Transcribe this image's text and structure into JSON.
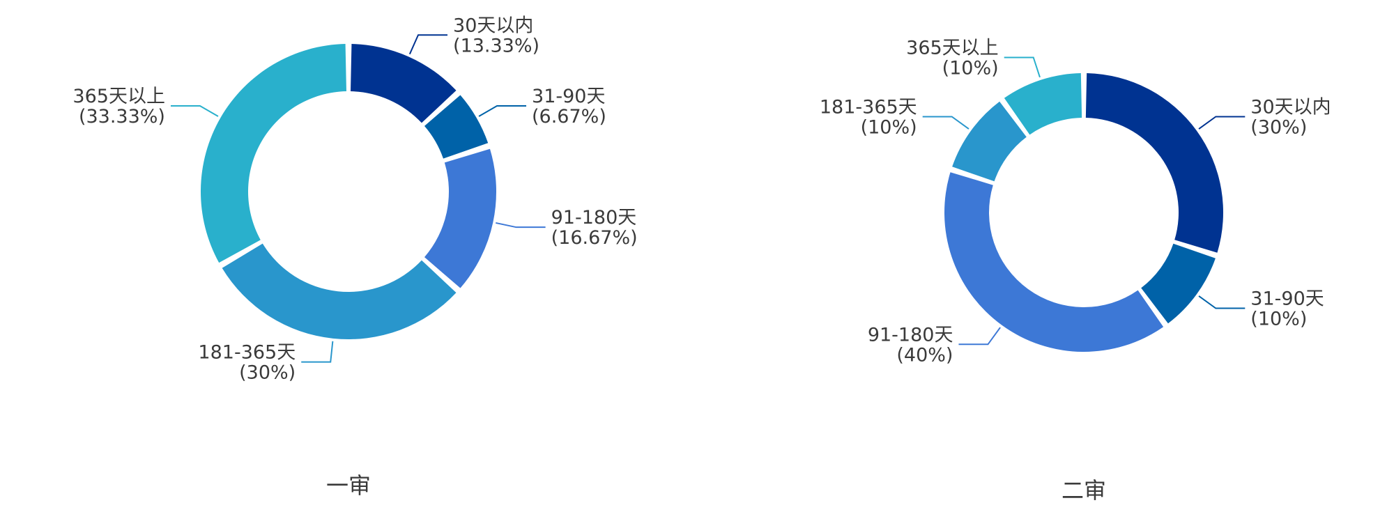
{
  "chart_data": [
    {
      "type": "pie",
      "title": "一审",
      "categories": [
        "30天以内",
        "31-90天",
        "91-180天",
        "181-365天",
        "365天以上"
      ],
      "values": [
        13.33,
        6.67,
        16.67,
        30,
        33.33
      ],
      "percent_labels": [
        "(13.33%)",
        "(6.67%)",
        "(16.67%)",
        "(30%)",
        "(33.33%)"
      ],
      "colors": [
        "#003391",
        "#0062a8",
        "#3d78d6",
        "#2996cc",
        "#29b0cc"
      ]
    },
    {
      "type": "pie",
      "title": "二审",
      "categories": [
        "30天以内",
        "31-90天",
        "91-180天",
        "181-365天",
        "365天以上"
      ],
      "values": [
        30,
        10,
        40,
        10,
        10
      ],
      "percent_labels": [
        "(30%)",
        "(10%)",
        "(40%)",
        "(10%)",
        "(10%)"
      ],
      "colors": [
        "#003391",
        "#0062a8",
        "#3d78d6",
        "#2996cc",
        "#29b0cc"
      ]
    }
  ]
}
